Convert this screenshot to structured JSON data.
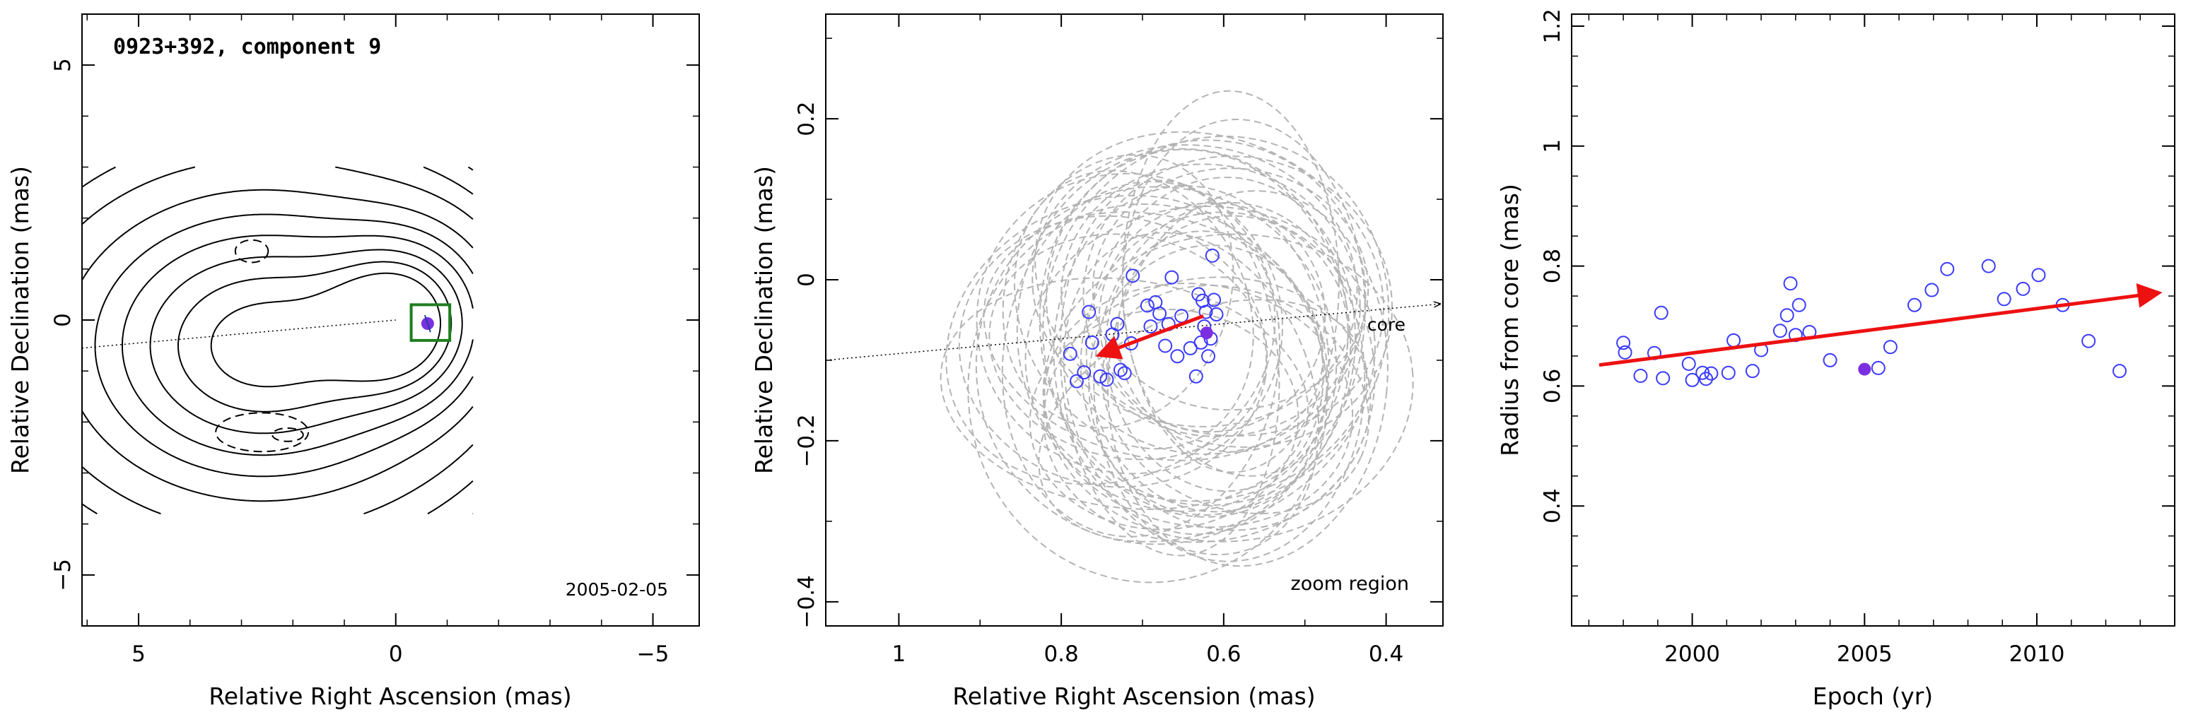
{
  "chart_data": [
    {
      "type": "scatter",
      "subtype": "vlbi-contour-map",
      "title": "0923+392, component 9",
      "epoch_label": "2005-02-05",
      "xlabel": "Relative Right Ascension (mas)",
      "ylabel": "Relative Declination (mas)",
      "xlim": [
        6.1,
        -5.9
      ],
      "ylim": [
        -6.0,
        6.0
      ],
      "x_ticks": [
        5,
        0,
        -5
      ],
      "y_ticks": [
        5,
        0,
        -5
      ],
      "x_tick_labels": [
        "5",
        "0",
        "−5"
      ],
      "y_tick_labels": [
        "5",
        "0",
        "−5"
      ],
      "jet_axis": {
        "from": [
          6.1,
          -0.55
        ],
        "to": [
          0.0,
          0.0
        ]
      },
      "core_component": {
        "x": 0.0,
        "y": 0.0
      },
      "component_9": {
        "x": -0.62,
        "y": -0.07,
        "color": "#7b2fe0"
      },
      "zoom_box": {
        "x": [
          -0.3,
          -1.05
        ],
        "y": [
          -0.4,
          0.3
        ],
        "color": "#1e7d1e"
      },
      "contours_positive": {
        "sources": [
          {
            "x": 2.6,
            "y": -0.5,
            "sx": 2.15,
            "sy": 1.7,
            "amp": 1.0
          },
          {
            "x": -0.15,
            "y": 0.0,
            "sx": 0.95,
            "sy": 1.0,
            "amp": 0.85
          }
        ],
        "levels": [
          0.025,
          0.05,
          0.1,
          0.2,
          0.32,
          0.45,
          0.6,
          0.75,
          0.9
        ]
      },
      "contours_negative": [
        {
          "x": 2.8,
          "y": 1.35,
          "rx": 0.32,
          "ry": 0.22
        },
        {
          "x": 2.6,
          "y": -2.2,
          "rx": 0.9,
          "ry": 0.38
        },
        {
          "x": 2.1,
          "y": -2.25,
          "rx": 0.3,
          "ry": 0.13
        }
      ]
    },
    {
      "type": "scatter",
      "subtype": "zoom-region",
      "xlabel": "Relative Right Ascension (mas)",
      "ylabel": "Relative Declination (mas)",
      "xlim": [
        1.09,
        0.33
      ],
      "ylim": [
        -0.43,
        0.33
      ],
      "x_ticks": [
        1,
        0.8,
        0.6,
        0.4
      ],
      "y_ticks": [
        0.2,
        0,
        -0.2,
        -0.4
      ],
      "x_tick_labels": [
        "1",
        "0.8",
        "0.6",
        "0.4"
      ],
      "y_tick_labels": [
        "0.2",
        "0",
        "−0.2",
        "−0.4"
      ],
      "annotations": {
        "core": "core",
        "zoom": "zoom region"
      },
      "core_line": {
        "from": [
          1.09,
          -0.1
        ],
        "to": [
          0.33,
          -0.03
        ]
      },
      "points_color": "#3b3bff",
      "positions": [
        [
          0.789,
          -0.092
        ],
        [
          0.781,
          -0.126
        ],
        [
          0.772,
          -0.115
        ],
        [
          0.766,
          -0.04
        ],
        [
          0.762,
          -0.078
        ],
        [
          0.752,
          -0.12
        ],
        [
          0.744,
          -0.124
        ],
        [
          0.737,
          -0.068
        ],
        [
          0.731,
          -0.055
        ],
        [
          0.727,
          -0.112
        ],
        [
          0.722,
          -0.116
        ],
        [
          0.714,
          -0.079
        ],
        [
          0.712,
          0.005
        ],
        [
          0.694,
          -0.032
        ],
        [
          0.69,
          -0.058
        ],
        [
          0.684,
          -0.028
        ],
        [
          0.679,
          -0.042
        ],
        [
          0.672,
          -0.082
        ],
        [
          0.668,
          -0.055
        ],
        [
          0.664,
          0.003
        ],
        [
          0.657,
          -0.095
        ],
        [
          0.652,
          -0.045
        ],
        [
          0.641,
          -0.085
        ],
        [
          0.634,
          -0.12
        ],
        [
          0.631,
          -0.018
        ],
        [
          0.628,
          -0.078
        ],
        [
          0.626,
          -0.026
        ],
        [
          0.624,
          -0.058
        ],
        [
          0.622,
          -0.04
        ],
        [
          0.619,
          -0.095
        ],
        [
          0.616,
          -0.073
        ],
        [
          0.614,
          0.03
        ],
        [
          0.612,
          -0.025
        ],
        [
          0.609,
          -0.043
        ]
      ],
      "highlight": {
        "x": 0.621,
        "y": -0.066,
        "color": "#7b2fe0"
      },
      "velocity_arrow": {
        "from": [
          0.625,
          -0.045
        ],
        "to": [
          0.752,
          -0.093
        ],
        "color": "#ee1111"
      },
      "beam_ellipses_count": 40
    },
    {
      "type": "scatter",
      "subtype": "radius-vs-epoch",
      "xlabel": "Epoch (yr)",
      "ylabel": "Radius from core (mas)",
      "xlim": [
        1996.5,
        2014.0
      ],
      "ylim": [
        0.2,
        1.22
      ],
      "x_ticks": [
        2000,
        2005,
        2010
      ],
      "y_ticks": [
        0.4,
        0.6,
        0.8,
        1.0,
        1.2
      ],
      "x_tick_labels": [
        "2000",
        "2005",
        "2010"
      ],
      "y_tick_labels": [
        "0.4",
        "0.6",
        "0.8",
        "1",
        "1.2"
      ],
      "points_color": "#3b3bff",
      "points": [
        [
          1998.0,
          0.672
        ],
        [
          1998.05,
          0.656
        ],
        [
          1998.5,
          0.617
        ],
        [
          1998.9,
          0.655
        ],
        [
          1999.1,
          0.722
        ],
        [
          1999.15,
          0.613
        ],
        [
          1999.9,
          0.637
        ],
        [
          2000.0,
          0.61
        ],
        [
          2000.3,
          0.622
        ],
        [
          2000.4,
          0.612
        ],
        [
          2000.55,
          0.621
        ],
        [
          2001.05,
          0.622
        ],
        [
          2001.2,
          0.676
        ],
        [
          2001.75,
          0.625
        ],
        [
          2002.0,
          0.66
        ],
        [
          2002.55,
          0.692
        ],
        [
          2002.75,
          0.718
        ],
        [
          2002.85,
          0.771
        ],
        [
          2003.0,
          0.685
        ],
        [
          2003.1,
          0.735
        ],
        [
          2003.4,
          0.69
        ],
        [
          2004.0,
          0.643
        ],
        [
          2005.4,
          0.63
        ],
        [
          2005.75,
          0.665
        ],
        [
          2006.45,
          0.735
        ],
        [
          2006.95,
          0.76
        ],
        [
          2007.4,
          0.795
        ],
        [
          2008.6,
          0.8
        ],
        [
          2009.05,
          0.745
        ],
        [
          2009.6,
          0.762
        ],
        [
          2010.05,
          0.785
        ],
        [
          2010.75,
          0.735
        ],
        [
          2011.5,
          0.675
        ],
        [
          2012.4,
          0.625
        ]
      ],
      "highlight": {
        "x": 2005.0,
        "y": 0.628,
        "color": "#7b2fe0"
      },
      "trend_arrow": {
        "from": [
          1997.3,
          0.635
        ],
        "to": [
          2013.5,
          0.755
        ],
        "color": "#ee1111"
      }
    }
  ]
}
